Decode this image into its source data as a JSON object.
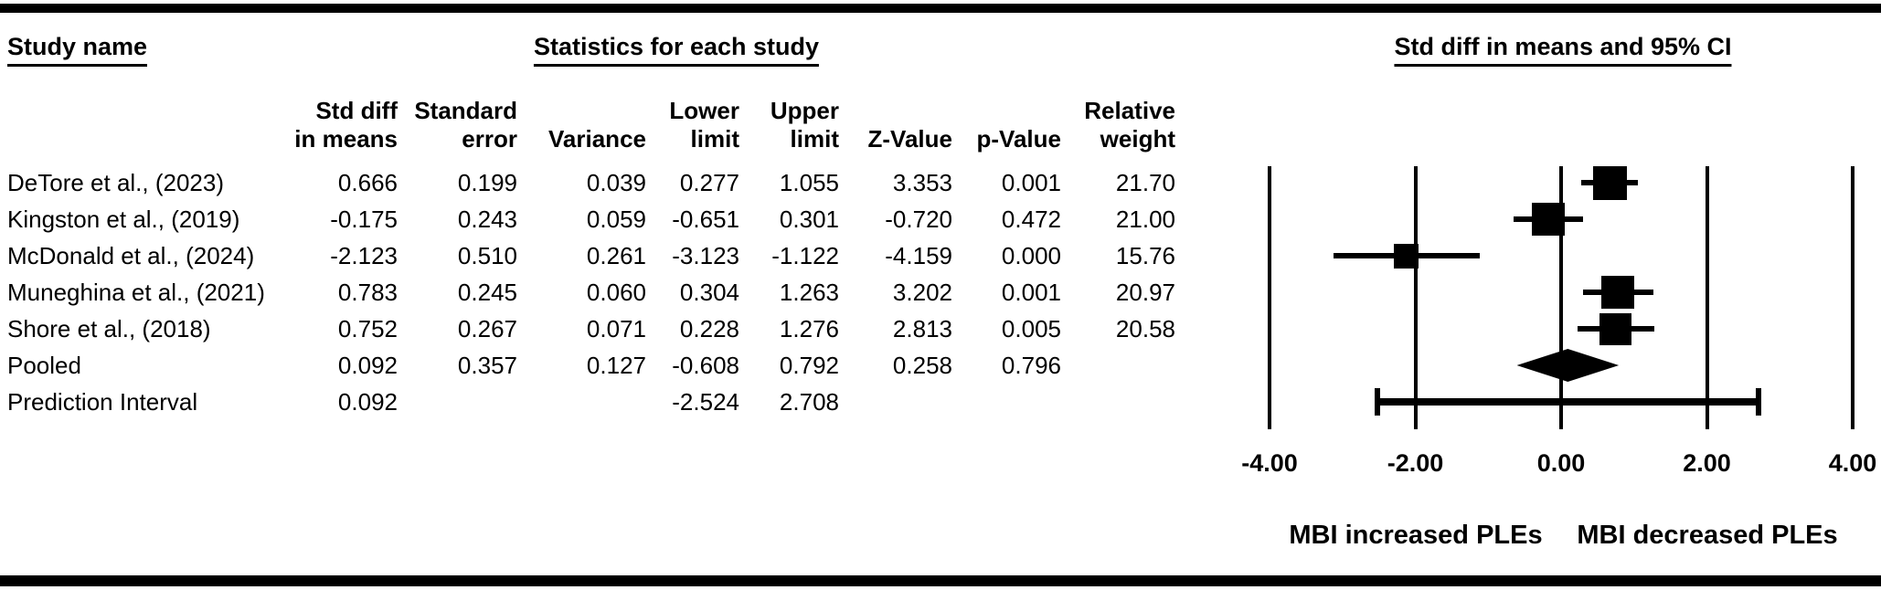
{
  "figure": {
    "study_column_title": "Study name",
    "stats_section_title": "Statistics for each study"
  },
  "table": {
    "columns": [
      {
        "id": "std_diff",
        "line1": "Std diff",
        "line2": "in means"
      },
      {
        "id": "std_err",
        "line1": "Standard",
        "line2": "error"
      },
      {
        "id": "variance",
        "line1": "",
        "line2": "Variance"
      },
      {
        "id": "lower",
        "line1": "Lower",
        "line2": "limit"
      },
      {
        "id": "upper",
        "line1": "Upper",
        "line2": "limit"
      },
      {
        "id": "z",
        "line1": "",
        "line2": "Z-Value"
      },
      {
        "id": "p",
        "line1": "",
        "line2": "p-Value"
      },
      {
        "id": "weight",
        "line1": "Relative",
        "line2": "weight"
      }
    ],
    "rows": [
      {
        "study": "DeTore et al., (2023)",
        "std_diff": "0.666",
        "std_err": "0.199",
        "variance": "0.039",
        "lower": "0.277",
        "upper": "1.055",
        "z": "3.353",
        "p": "0.001",
        "weight": "21.70"
      },
      {
        "study": "Kingston et al., (2019)",
        "std_diff": "-0.175",
        "std_err": "0.243",
        "variance": "0.059",
        "lower": "-0.651",
        "upper": "0.301",
        "z": "-0.720",
        "p": "0.472",
        "weight": "21.00"
      },
      {
        "study": "McDonald et al., (2024)",
        "std_diff": "-2.123",
        "std_err": "0.510",
        "variance": "0.261",
        "lower": "-3.123",
        "upper": "-1.122",
        "z": "-4.159",
        "p": "0.000",
        "weight": "15.76"
      },
      {
        "study": "Muneghina et al., (2021)",
        "std_diff": "0.783",
        "std_err": "0.245",
        "variance": "0.060",
        "lower": "0.304",
        "upper": "1.263",
        "z": "3.202",
        "p": "0.001",
        "weight": "20.97"
      },
      {
        "study": "Shore et al., (2018)",
        "std_diff": "0.752",
        "std_err": "0.267",
        "variance": "0.071",
        "lower": "0.228",
        "upper": "1.276",
        "z": "2.813",
        "p": "0.005",
        "weight": "20.58"
      },
      {
        "study": "Pooled",
        "std_diff": "0.092",
        "std_err": "0.357",
        "variance": "0.127",
        "lower": "-0.608",
        "upper": "0.792",
        "z": "0.258",
        "p": "0.796",
        "weight": ""
      },
      {
        "study": "Prediction Interval",
        "std_diff": "0.092",
        "std_err": "",
        "variance": "",
        "lower": "-2.524",
        "upper": "2.708",
        "z": "",
        "p": "",
        "weight": ""
      }
    ]
  },
  "chart_data": {
    "type": "forest",
    "title": "Std diff in means and 95% CI",
    "xlim": [
      -4,
      4
    ],
    "x_ticks": [
      -4,
      -2,
      0,
      2,
      4
    ],
    "x_tick_labels": [
      "-4.00",
      "-2.00",
      "0.00",
      "2.00",
      "4.00"
    ],
    "grid": true,
    "legend": "none",
    "marker_color": "#000000",
    "studies": [
      {
        "name": "DeTore et al., (2023)",
        "point": 0.666,
        "lower": 0.277,
        "upper": 1.055,
        "weight": 21.7
      },
      {
        "name": "Kingston et al., (2019)",
        "point": -0.175,
        "lower": -0.651,
        "upper": 0.301,
        "weight": 21.0
      },
      {
        "name": "McDonald et al., (2024)",
        "point": -2.123,
        "lower": -3.123,
        "upper": -1.122,
        "weight": 15.76
      },
      {
        "name": "Muneghina et al., (2021)",
        "point": 0.783,
        "lower": 0.304,
        "upper": 1.263,
        "weight": 20.97
      },
      {
        "name": "Shore et al., (2018)",
        "point": 0.752,
        "lower": 0.228,
        "upper": 1.276,
        "weight": 20.58
      }
    ],
    "pooled": {
      "name": "Pooled",
      "point": 0.092,
      "lower": -0.608,
      "upper": 0.792
    },
    "prediction_interval": {
      "name": "Prediction Interval",
      "point": 0.092,
      "lower": -2.524,
      "upper": 2.708
    },
    "xlabel_left": "MBI increased PLEs",
    "xlabel_right": "MBI decreased PLEs"
  }
}
